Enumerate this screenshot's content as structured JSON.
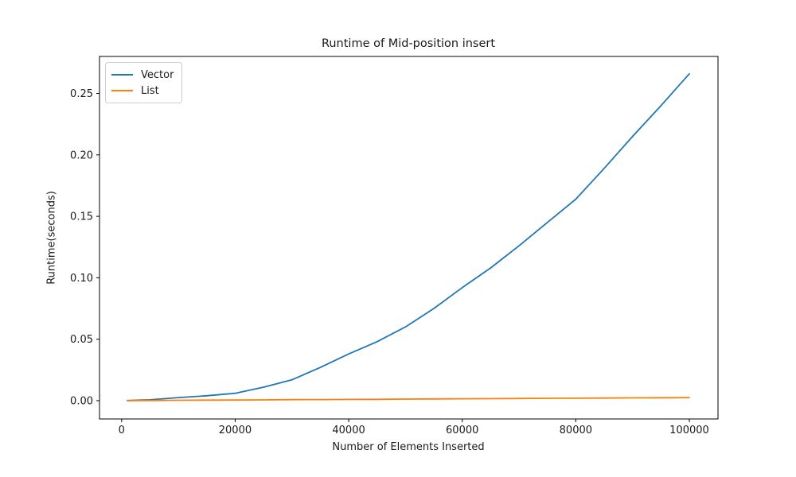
{
  "chart_data": {
    "type": "line",
    "title": "Runtime of Mid-position insert",
    "xlabel": "Number of Elements Inserted",
    "ylabel": "Runtime(seconds)",
    "x": [
      1000,
      5000,
      10000,
      15000,
      20000,
      25000,
      30000,
      35000,
      40000,
      45000,
      50000,
      55000,
      60000,
      65000,
      70000,
      75000,
      80000,
      85000,
      90000,
      95000,
      100000
    ],
    "series": [
      {
        "name": "Vector",
        "color": "#1f77b4",
        "values": [
          0.0001,
          0.0007,
          0.0025,
          0.004,
          0.006,
          0.011,
          0.017,
          0.027,
          0.038,
          0.048,
          0.06,
          0.075,
          0.092,
          0.108,
          0.126,
          0.145,
          0.164,
          0.189,
          0.215,
          0.24,
          0.266
        ]
      },
      {
        "name": "List",
        "color": "#ff7f0e",
        "values": [
          0.0,
          0.0001,
          0.0003,
          0.0004,
          0.0005,
          0.0006,
          0.0008,
          0.0009,
          0.001,
          0.0011,
          0.0013,
          0.0014,
          0.0015,
          0.0016,
          0.0018,
          0.0019,
          0.002,
          0.0021,
          0.0023,
          0.0024,
          0.0025
        ]
      }
    ],
    "xticks": {
      "values": [
        0,
        20000,
        40000,
        60000,
        80000,
        100000
      ],
      "labels": [
        "0",
        "20000",
        "40000",
        "60000",
        "80000",
        "100000"
      ]
    },
    "yticks": {
      "values": [
        0.0,
        0.05,
        0.1,
        0.15,
        0.2,
        0.25
      ],
      "labels": [
        "0.00",
        "0.05",
        "0.10",
        "0.15",
        "0.20",
        "0.25"
      ]
    },
    "xlim": [
      -3900,
      105050
    ],
    "ylim": [
      -0.0149,
      0.2801
    ],
    "grid": false,
    "legend_position": "upper left",
    "background": "#ffffff",
    "frame_color": "#000000"
  }
}
